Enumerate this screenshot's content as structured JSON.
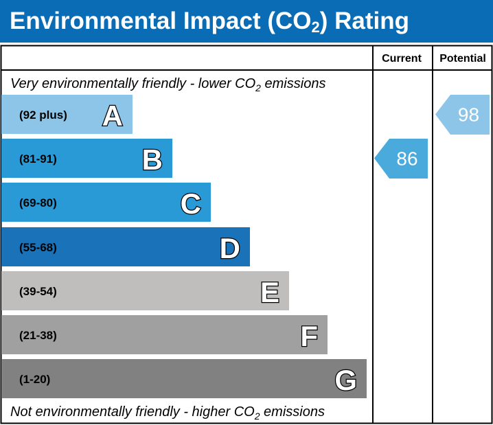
{
  "title": {
    "pre": "Environmental Impact (CO",
    "sub": "2",
    "post": ") Rating"
  },
  "chart_data": {
    "type": "bar",
    "columns": [
      "Current",
      "Potential"
    ],
    "top_note": {
      "pre": "Very environmentally friendly - lower CO",
      "sub": "2",
      "post": " emissions"
    },
    "bottom_note": {
      "pre": "Not environmentally friendly - higher CO",
      "sub": "2",
      "post": " emissions"
    },
    "bands": [
      {
        "letter": "A",
        "range": "(92 plus)",
        "color": "#8cc5e8"
      },
      {
        "letter": "B",
        "range": "(81-91)",
        "color": "#2a9ad6"
      },
      {
        "letter": "C",
        "range": "(69-80)",
        "color": "#2a9ad6"
      },
      {
        "letter": "D",
        "range": "(55-68)",
        "color": "#1a72b8"
      },
      {
        "letter": "E",
        "range": "(39-54)",
        "color": "#bfbebd"
      },
      {
        "letter": "F",
        "range": "(21-38)",
        "color": "#a0a0a0"
      },
      {
        "letter": "G",
        "range": "(1-20)",
        "color": "#818181"
      }
    ],
    "current": {
      "value": 86,
      "band": "B",
      "color": "#4aaadc"
    },
    "potential": {
      "value": 98,
      "band": "A",
      "color": "#8cc5e8"
    }
  }
}
